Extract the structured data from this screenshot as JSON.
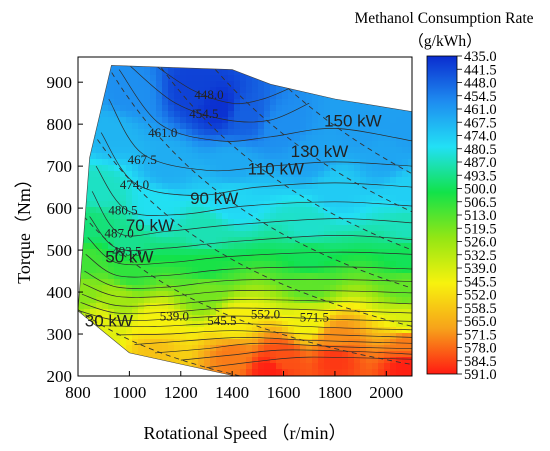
{
  "chart_data": {
    "type": "heatmap",
    "title": "",
    "xlabel": "Rotational Speed （r/min）",
    "ylabel": "Torque（Nm）",
    "xlim": [
      800,
      2100
    ],
    "ylim": [
      200,
      960
    ],
    "xticks": [
      "800",
      "1000",
      "1200",
      "1400",
      "1600",
      "1800",
      "2000"
    ],
    "yticks": [
      "200",
      "300",
      "400",
      "500",
      "600",
      "700",
      "800",
      "900"
    ],
    "colorbar": {
      "title_line1": "Methanol Consumption Rate",
      "title_line2": "（g/kWh）",
      "range": [
        435.0,
        591.0
      ],
      "reversed": true,
      "ticks": [
        "435.0",
        "441.5",
        "448.0",
        "454.5",
        "461.0",
        "467.5",
        "474.0",
        "480.5",
        "487.0",
        "493.5",
        "500.0",
        "506.5",
        "513.0",
        "519.5",
        "526.0",
        "532.5",
        "539.0",
        "545.5",
        "552.0",
        "558.5",
        "565.0",
        "571.5",
        "578.0",
        "584.5",
        "591.0"
      ],
      "colors": [
        "#0a2ccf",
        "#1e8cf0",
        "#22e0f5",
        "#12e24a",
        "#93e614",
        "#f7f20e",
        "#f7a21a",
        "#ff1a12"
      ]
    },
    "region_boundary": [
      [
        800,
        355
      ],
      [
        845,
        720
      ],
      [
        930,
        940
      ],
      [
        1400,
        930
      ],
      [
        1550,
        895
      ],
      [
        1800,
        860
      ],
      [
        2100,
        830
      ],
      [
        2100,
        200
      ],
      [
        1410,
        200
      ],
      [
        1000,
        255
      ]
    ],
    "consumption_contours": [
      {
        "value": 448.0,
        "label": "448.0",
        "points": [
          [
            1100,
            940
          ],
          [
            1250,
            880
          ],
          [
            1400,
            850
          ],
          [
            1520,
            860
          ],
          [
            1640,
            890
          ]
        ]
      },
      {
        "value": 454.5,
        "label": "454.5",
        "points": [
          [
            1000,
            940
          ],
          [
            1180,
            850
          ],
          [
            1380,
            810
          ],
          [
            1550,
            810
          ],
          [
            1700,
            850
          ]
        ]
      },
      {
        "value": 461.0,
        "label": "461.0",
        "points": [
          [
            960,
            930
          ],
          [
            1120,
            800
          ],
          [
            1350,
            760
          ],
          [
            1550,
            770
          ],
          [
            1800,
            790
          ],
          [
            2100,
            760
          ]
        ]
      },
      {
        "value": 467.5,
        "label": "467.5",
        "points": [
          [
            920,
            860
          ],
          [
            1050,
            730
          ],
          [
            1300,
            690
          ],
          [
            1550,
            700
          ],
          [
            1800,
            710
          ],
          [
            2100,
            700
          ]
        ]
      },
      {
        "value": 474.0,
        "label": "474.0",
        "points": [
          [
            890,
            780
          ],
          [
            1020,
            660
          ],
          [
            1250,
            630
          ],
          [
            1500,
            650
          ],
          [
            1800,
            660
          ],
          [
            2100,
            650
          ]
        ]
      },
      {
        "value": 480.5,
        "label": "480.5",
        "points": [
          [
            870,
            700
          ],
          [
            990,
            595
          ],
          [
            1200,
            585
          ],
          [
            1450,
            605
          ],
          [
            1800,
            615
          ],
          [
            2100,
            605
          ]
        ]
      },
      {
        "value": 487.0,
        "label": "487.0",
        "points": [
          [
            855,
            640
          ],
          [
            960,
            540
          ],
          [
            1150,
            545
          ],
          [
            1400,
            560
          ],
          [
            1800,
            575
          ],
          [
            2100,
            565
          ]
        ]
      },
      {
        "value": 493.5,
        "label": "493.5",
        "points": [
          [
            845,
            580
          ],
          [
            950,
            505
          ],
          [
            1150,
            505
          ],
          [
            1400,
            520
          ],
          [
            1800,
            535
          ],
          [
            2100,
            525
          ]
        ]
      },
      {
        "value": 500.0,
        "label": "",
        "points": [
          [
            838,
            530
          ],
          [
            950,
            470
          ],
          [
            1150,
            470
          ],
          [
            1400,
            485
          ],
          [
            1800,
            495
          ],
          [
            2100,
            490
          ]
        ]
      },
      {
        "value": 506.5,
        "label": "",
        "points": [
          [
            830,
            490
          ],
          [
            950,
            440
          ],
          [
            1150,
            440
          ],
          [
            1400,
            455
          ],
          [
            1800,
            460
          ],
          [
            2100,
            455
          ]
        ]
      },
      {
        "value": 513.0,
        "label": "",
        "points": [
          [
            825,
            450
          ],
          [
            950,
            412
          ],
          [
            1150,
            412
          ],
          [
            1400,
            428
          ],
          [
            1800,
            430
          ],
          [
            2100,
            425
          ]
        ]
      },
      {
        "value": 519.5,
        "label": "",
        "points": [
          [
            820,
            420
          ],
          [
            950,
            390
          ],
          [
            1150,
            390
          ],
          [
            1400,
            403
          ],
          [
            1800,
            403
          ],
          [
            2100,
            398
          ]
        ]
      },
      {
        "value": 526.0,
        "label": "",
        "points": [
          [
            815,
            395
          ],
          [
            950,
            368
          ],
          [
            1150,
            370
          ],
          [
            1400,
            382
          ],
          [
            1800,
            378
          ],
          [
            2100,
            372
          ]
        ]
      },
      {
        "value": 532.5,
        "label": "",
        "points": [
          [
            810,
            375
          ],
          [
            950,
            350
          ],
          [
            1150,
            352
          ],
          [
            1400,
            362
          ],
          [
            1800,
            356
          ],
          [
            2100,
            350
          ]
        ]
      },
      {
        "value": 539.0,
        "label": "539.0",
        "points": [
          [
            805,
            355
          ],
          [
            950,
            333
          ],
          [
            1150,
            335
          ],
          [
            1400,
            343
          ],
          [
            1800,
            335
          ],
          [
            2100,
            330
          ]
        ]
      },
      {
        "value": 545.5,
        "label": "545.5",
        "points": [
          [
            880,
            320
          ],
          [
            1100,
            318
          ],
          [
            1400,
            325
          ],
          [
            1800,
            315
          ],
          [
            2100,
            310
          ]
        ]
      },
      {
        "value": 552.0,
        "label": "552.0",
        "points": [
          [
            950,
            298
          ],
          [
            1150,
            300
          ],
          [
            1400,
            308
          ],
          [
            1700,
            300
          ],
          [
            2100,
            292
          ]
        ]
      },
      {
        "value": 558.5,
        "label": "",
        "points": [
          [
            1020,
            275
          ],
          [
            1200,
            283
          ],
          [
            1450,
            292
          ],
          [
            1700,
            285
          ],
          [
            2100,
            278
          ]
        ]
      },
      {
        "value": 565.0,
        "label": "",
        "points": [
          [
            1100,
            255
          ],
          [
            1300,
            265
          ],
          [
            1500,
            278
          ],
          [
            1800,
            270
          ],
          [
            2100,
            265
          ]
        ]
      },
      {
        "value": 571.5,
        "label": "571.5",
        "points": [
          [
            1200,
            238
          ],
          [
            1400,
            250
          ],
          [
            1600,
            262
          ],
          [
            1900,
            258
          ],
          [
            2100,
            252
          ]
        ]
      },
      {
        "value": 578.0,
        "label": "",
        "points": [
          [
            1300,
            220
          ],
          [
            1500,
            235
          ],
          [
            1700,
            245
          ],
          [
            2100,
            240
          ]
        ]
      }
    ],
    "contour_label_positions": [
      {
        "label": "448.0",
        "x": 1310,
        "y": 860
      },
      {
        "label": "454.5",
        "x": 1290,
        "y": 815
      },
      {
        "label": "461.0",
        "x": 1130,
        "y": 770
      },
      {
        "label": "467.5",
        "x": 1050,
        "y": 705
      },
      {
        "label": "474.0",
        "x": 1020,
        "y": 645
      },
      {
        "label": "480.5",
        "x": 975,
        "y": 585
      },
      {
        "label": "487.0",
        "x": 960,
        "y": 530
      },
      {
        "label": "493.5",
        "x": 990,
        "y": 487
      },
      {
        "label": "539.0",
        "x": 1175,
        "y": 332
      },
      {
        "label": "545.5",
        "x": 1360,
        "y": 322
      },
      {
        "label": "552.0",
        "x": 1530,
        "y": 337
      },
      {
        "label": "571.5",
        "x": 1720,
        "y": 330
      }
    ],
    "power_lines": [
      {
        "label": "30 kW",
        "kw": 30,
        "label_x": 920,
        "label_y": 318
      },
      {
        "label": "50 kW",
        "kw": 50,
        "label_x": 1000,
        "label_y": 470
      },
      {
        "label": "70 kW",
        "kw": 70,
        "label_x": 1080,
        "label_y": 545
      },
      {
        "label": "90 kW",
        "kw": 90,
        "label_x": 1330,
        "label_y": 610
      },
      {
        "label": "110 kW",
        "kw": 110,
        "label_x": 1570,
        "label_y": 680
      },
      {
        "label": "130 kW",
        "kw": 130,
        "label_x": 1740,
        "label_y": 722
      },
      {
        "label": "150 kW",
        "kw": 150,
        "label_x": 1870,
        "label_y": 795
      }
    ],
    "heat_field_points": [
      [
        1350,
        840,
        436
      ],
      [
        1250,
        880,
        440
      ],
      [
        1450,
        820,
        447
      ],
      [
        1600,
        790,
        458
      ],
      [
        1900,
        790,
        462
      ],
      [
        2080,
        780,
        462
      ],
      [
        1000,
        870,
        458
      ],
      [
        930,
        780,
        468
      ],
      [
        880,
        640,
        486
      ],
      [
        850,
        560,
        496
      ],
      [
        830,
        470,
        510
      ],
      [
        820,
        400,
        522
      ],
      [
        1150,
        700,
        466
      ],
      [
        1400,
        700,
        465
      ],
      [
        1700,
        720,
        463
      ],
      [
        2000,
        720,
        464
      ],
      [
        1100,
        600,
        480
      ],
      [
        1400,
        620,
        477
      ],
      [
        1800,
        640,
        474
      ],
      [
        2080,
        640,
        475
      ],
      [
        1000,
        520,
        493
      ],
      [
        1300,
        540,
        488
      ],
      [
        1700,
        560,
        485
      ],
      [
        2080,
        560,
        487
      ],
      [
        1000,
        450,
        507
      ],
      [
        1300,
        460,
        503
      ],
      [
        1700,
        480,
        500
      ],
      [
        2080,
        480,
        500
      ],
      [
        950,
        380,
        527
      ],
      [
        1300,
        400,
        519
      ],
      [
        1700,
        410,
        515
      ],
      [
        2080,
        410,
        516
      ],
      [
        900,
        330,
        542
      ],
      [
        1100,
        320,
        546
      ],
      [
        1400,
        320,
        548
      ],
      [
        1700,
        330,
        545
      ],
      [
        2080,
        330,
        540
      ],
      [
        1100,
        270,
        560
      ],
      [
        1400,
        250,
        575
      ],
      [
        1600,
        240,
        582
      ],
      [
        1800,
        240,
        586
      ],
      [
        2080,
        220,
        590
      ],
      [
        1550,
        210,
        590
      ],
      [
        2080,
        280,
        575
      ],
      [
        1800,
        290,
        572
      ]
    ]
  }
}
